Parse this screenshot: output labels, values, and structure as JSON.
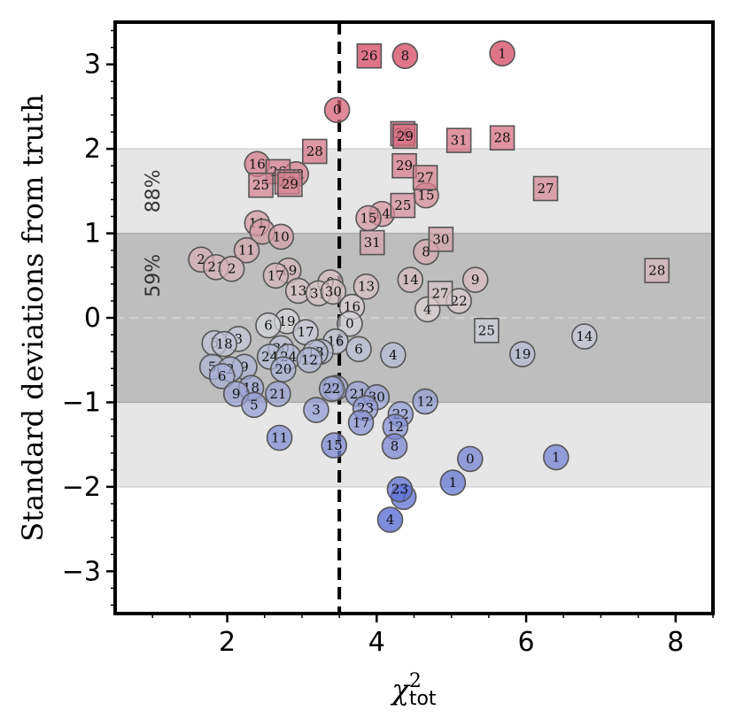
{
  "chart_data": {
    "type": "scatter",
    "title": "",
    "xlabel": "χ",
    "xlabel_sup": "2",
    "xlabel_sub": "tot",
    "ylabel": "Standard deviations from truth",
    "xlim": [
      0.5,
      8.5
    ],
    "ylim": [
      -3.5,
      3.5
    ],
    "x_ticks": [
      {
        "v": 2,
        "label": "2"
      },
      {
        "v": 4,
        "label": "4"
      },
      {
        "v": 6,
        "label": "6"
      },
      {
        "v": 8,
        "label": "8"
      }
    ],
    "y_ticks": [
      {
        "v": -3,
        "label": "−3"
      },
      {
        "v": -2,
        "label": "−2"
      },
      {
        "v": -1,
        "label": "−1"
      },
      {
        "v": 0,
        "label": "0"
      },
      {
        "v": 1,
        "label": "1"
      },
      {
        "v": 2,
        "label": "2"
      },
      {
        "v": 3,
        "label": "3"
      }
    ],
    "bands": [
      {
        "label": "88%",
        "from": -2,
        "to": 2,
        "color": "#e6e6e6"
      },
      {
        "label": "59%",
        "from": -1,
        "to": 1,
        "color": "#bebebe"
      }
    ],
    "reference_lines": [
      {
        "orientation": "vertical",
        "x": 3.5,
        "style": "dashed",
        "color": "#000000"
      },
      {
        "orientation": "horizontal",
        "y": 0,
        "style": "dashed",
        "color": "#cfcfcf"
      }
    ],
    "color_scale": {
      "low": "#4a5fd0",
      "mid": "#d9d9d9",
      "high": "#d2405c",
      "range": [
        -2.4,
        3.1
      ]
    },
    "series": [
      {
        "name": "circles",
        "marker": "circle",
        "points": [
          {
            "x": 5.68,
            "y": 3.13,
            "label": "1"
          },
          {
            "x": 4.38,
            "y": 3.1,
            "label": "8"
          },
          {
            "x": 3.47,
            "y": 2.46,
            "label": "0"
          },
          {
            "x": 2.4,
            "y": 1.82,
            "label": "16"
          },
          {
            "x": 2.92,
            "y": 1.7,
            "label": "22"
          },
          {
            "x": 4.66,
            "y": 1.45,
            "label": "15"
          },
          {
            "x": 4.07,
            "y": 1.23,
            "label": "14"
          },
          {
            "x": 3.89,
            "y": 1.18,
            "label": "15"
          },
          {
            "x": 2.4,
            "y": 1.12,
            "label": "11"
          },
          {
            "x": 2.47,
            "y": 1.02,
            "label": "7"
          },
          {
            "x": 2.72,
            "y": 0.96,
            "label": "10"
          },
          {
            "x": 2.26,
            "y": 0.8,
            "label": "11"
          },
          {
            "x": 4.66,
            "y": 0.78,
            "label": "8"
          },
          {
            "x": 1.65,
            "y": 0.69,
            "label": "2"
          },
          {
            "x": 1.85,
            "y": 0.6,
            "label": "21"
          },
          {
            "x": 2.06,
            "y": 0.58,
            "label": "2"
          },
          {
            "x": 2.82,
            "y": 0.56,
            "label": "19"
          },
          {
            "x": 2.65,
            "y": 0.5,
            "label": "17"
          },
          {
            "x": 4.45,
            "y": 0.45,
            "label": "14"
          },
          {
            "x": 5.32,
            "y": 0.45,
            "label": "9"
          },
          {
            "x": 3.38,
            "y": 0.42,
            "label": "0"
          },
          {
            "x": 3.86,
            "y": 0.37,
            "label": "13"
          },
          {
            "x": 2.95,
            "y": 0.32,
            "label": "13"
          },
          {
            "x": 3.22,
            "y": 0.29,
            "label": "31"
          },
          {
            "x": 3.42,
            "y": 0.31,
            "label": "30"
          },
          {
            "x": 5.1,
            "y": 0.2,
            "label": "22"
          },
          {
            "x": 3.67,
            "y": 0.13,
            "label": "16"
          },
          {
            "x": 4.68,
            "y": 0.1,
            "label": "4"
          },
          {
            "x": 3.64,
            "y": -0.07,
            "label": "0"
          },
          {
            "x": 2.8,
            "y": -0.04,
            "label": "19"
          },
          {
            "x": 2.55,
            "y": -0.09,
            "label": "6"
          },
          {
            "x": 3.05,
            "y": -0.17,
            "label": "17"
          },
          {
            "x": 6.78,
            "y": -0.22,
            "label": "14"
          },
          {
            "x": 2.15,
            "y": -0.25,
            "label": "3"
          },
          {
            "x": 1.83,
            "y": -0.3,
            "label": "5"
          },
          {
            "x": 1.96,
            "y": -0.31,
            "label": "18"
          },
          {
            "x": 3.45,
            "y": -0.28,
            "label": "16"
          },
          {
            "x": 2.72,
            "y": -0.36,
            "label": "30"
          },
          {
            "x": 3.76,
            "y": -0.37,
            "label": "6"
          },
          {
            "x": 5.95,
            "y": -0.43,
            "label": "19"
          },
          {
            "x": 4.22,
            "y": -0.44,
            "label": "4"
          },
          {
            "x": 3.25,
            "y": -0.4,
            "label": "20"
          },
          {
            "x": 2.57,
            "y": -0.46,
            "label": "24"
          },
          {
            "x": 2.82,
            "y": -0.46,
            "label": "24"
          },
          {
            "x": 3.18,
            "y": -0.41,
            "label": "13"
          },
          {
            "x": 3.1,
            "y": -0.5,
            "label": "12"
          },
          {
            "x": 2.23,
            "y": -0.58,
            "label": "9"
          },
          {
            "x": 1.8,
            "y": -0.58,
            "label": "5"
          },
          {
            "x": 2.75,
            "y": -0.61,
            "label": "20"
          },
          {
            "x": 2.04,
            "y": -0.61,
            "label": "2"
          },
          {
            "x": 1.93,
            "y": -0.69,
            "label": "6"
          },
          {
            "x": 3.45,
            "y": -0.83,
            "label": "20"
          },
          {
            "x": 2.32,
            "y": -0.83,
            "label": "18"
          },
          {
            "x": 3.4,
            "y": -0.84,
            "label": "22"
          },
          {
            "x": 3.75,
            "y": -0.9,
            "label": "21"
          },
          {
            "x": 2.12,
            "y": -0.9,
            "label": "9"
          },
          {
            "x": 2.68,
            "y": -0.9,
            "label": "21"
          },
          {
            "x": 4.0,
            "y": -0.94,
            "label": "30"
          },
          {
            "x": 4.65,
            "y": -0.99,
            "label": "12"
          },
          {
            "x": 2.36,
            "y": -1.03,
            "label": "5"
          },
          {
            "x": 3.85,
            "y": -1.07,
            "label": "23"
          },
          {
            "x": 3.19,
            "y": -1.09,
            "label": "3"
          },
          {
            "x": 4.32,
            "y": -1.14,
            "label": "22"
          },
          {
            "x": 3.79,
            "y": -1.24,
            "label": "17"
          },
          {
            "x": 4.25,
            "y": -1.29,
            "label": "12"
          },
          {
            "x": 2.7,
            "y": -1.42,
            "label": "11"
          },
          {
            "x": 3.43,
            "y": -1.51,
            "label": "15"
          },
          {
            "x": 4.24,
            "y": -1.52,
            "label": "8"
          },
          {
            "x": 6.4,
            "y": -1.65,
            "label": "1"
          },
          {
            "x": 5.25,
            "y": -1.67,
            "label": "0"
          },
          {
            "x": 5.02,
            "y": -1.95,
            "label": "1"
          },
          {
            "x": 4.36,
            "y": -2.12,
            "label": "7"
          },
          {
            "x": 4.31,
            "y": -2.03,
            "label": "23"
          },
          {
            "x": 4.18,
            "y": -2.39,
            "label": "4"
          }
        ]
      },
      {
        "name": "squares",
        "marker": "square",
        "points": [
          {
            "x": 3.9,
            "y": 3.1,
            "label": "26"
          },
          {
            "x": 4.35,
            "y": 2.18,
            "label": "26"
          },
          {
            "x": 4.38,
            "y": 2.15,
            "label": "29"
          },
          {
            "x": 5.1,
            "y": 2.1,
            "label": "31"
          },
          {
            "x": 5.68,
            "y": 2.13,
            "label": "28"
          },
          {
            "x": 3.17,
            "y": 1.97,
            "label": "28"
          },
          {
            "x": 4.37,
            "y": 1.8,
            "label": "29"
          },
          {
            "x": 2.68,
            "y": 1.73,
            "label": "26"
          },
          {
            "x": 2.8,
            "y": 1.61,
            "label": "27"
          },
          {
            "x": 2.84,
            "y": 1.58,
            "label": "29"
          },
          {
            "x": 2.45,
            "y": 1.57,
            "label": "25"
          },
          {
            "x": 4.65,
            "y": 1.66,
            "label": "27"
          },
          {
            "x": 6.26,
            "y": 1.53,
            "label": "27"
          },
          {
            "x": 4.35,
            "y": 1.33,
            "label": "25"
          },
          {
            "x": 3.94,
            "y": 0.89,
            "label": "31"
          },
          {
            "x": 4.86,
            "y": 0.93,
            "label": "30"
          },
          {
            "x": 7.75,
            "y": 0.56,
            "label": "28"
          },
          {
            "x": 4.85,
            "y": 0.29,
            "label": "27"
          },
          {
            "x": 5.47,
            "y": -0.15,
            "label": "25"
          }
        ]
      }
    ]
  }
}
